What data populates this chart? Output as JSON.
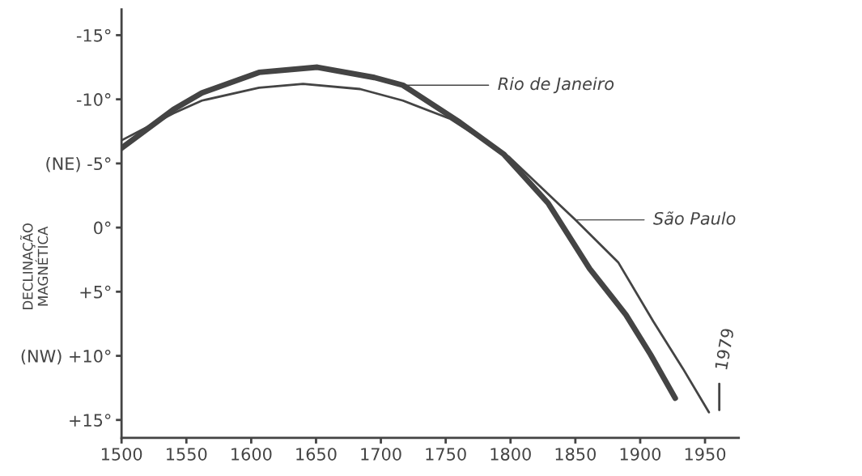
{
  "chart_data": {
    "type": "line",
    "ylabel": "DECLINAÇÃO\nMAGNÉTICA",
    "xlim": [
      1500,
      1976
    ],
    "xticks": [
      1500,
      1550,
      1600,
      1650,
      1700,
      1750,
      1800,
      1850,
      1900,
      1950
    ],
    "ylim": [
      16.4,
      -17
    ],
    "yticks": [
      {
        "value": -15,
        "label": "-15°"
      },
      {
        "value": -10,
        "label": "-10°"
      },
      {
        "value": -5,
        "label": "(NE) -5°"
      },
      {
        "value": 0,
        "label": "0°"
      },
      {
        "value": 5,
        "label": "+5°"
      },
      {
        "value": 10,
        "label": "(NW) +10°"
      },
      {
        "value": 15,
        "label": "+15°"
      }
    ],
    "grid": false,
    "marker": "none",
    "line_style": "solid",
    "series": [
      {
        "color": "#444444",
        "x": [
          1500,
          1540,
          1562,
          1606,
          1651,
          1695,
          1717,
          1761,
          1795,
          1829,
          1861,
          1889,
          1908,
          1927
        ],
        "values": [
          -6.2,
          -9.2,
          -10.5,
          -12.1,
          -12.5,
          -11.7,
          -11.1,
          -8.2,
          -5.7,
          -1.9,
          3.2,
          6.8,
          9.9,
          13.3
        ]
      },
      {
        "color": "#444444",
        "x": [
          1500,
          1540,
          1562,
          1606,
          1640,
          1684,
          1717,
          1753,
          1799,
          1850,
          1883,
          1910,
          1933,
          1953
        ],
        "values": [
          -6.8,
          -8.9,
          -9.9,
          -10.9,
          -11.2,
          -10.8,
          -9.9,
          -8.5,
          -5.5,
          -0.6,
          2.7,
          7.3,
          11.0,
          14.4
        ]
      }
    ],
    "annotations": [
      {
        "text": "Rio de Janeiro",
        "x": 1717,
        "y": -11.1
      },
      "São Paulo",
      {
        "text": "1979",
        "x": 1953,
        "y": 14.4
      }
    ]
  }
}
